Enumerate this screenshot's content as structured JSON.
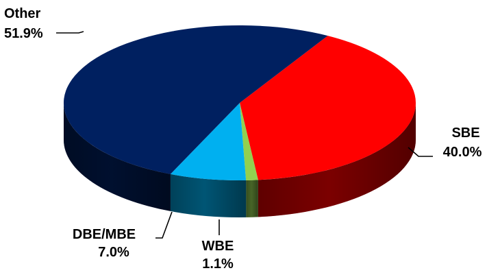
{
  "chart_data": {
    "type": "pie",
    "title": "",
    "three_d": true,
    "start_angle_deg": 300,
    "direction": "clockwise",
    "slices": [
      {
        "name": "SBE",
        "value": 40.0,
        "label": "40.0%",
        "color": "#ff0000"
      },
      {
        "name": "WBE",
        "value": 1.1,
        "label": "1.1%",
        "color": "#92d050"
      },
      {
        "name": "DBE/MBE",
        "value": 7.0,
        "label": "7.0%",
        "color": "#00b0f0"
      },
      {
        "name": "Other",
        "value": 51.9,
        "label": "51.9%",
        "color": "#002060"
      }
    ]
  }
}
